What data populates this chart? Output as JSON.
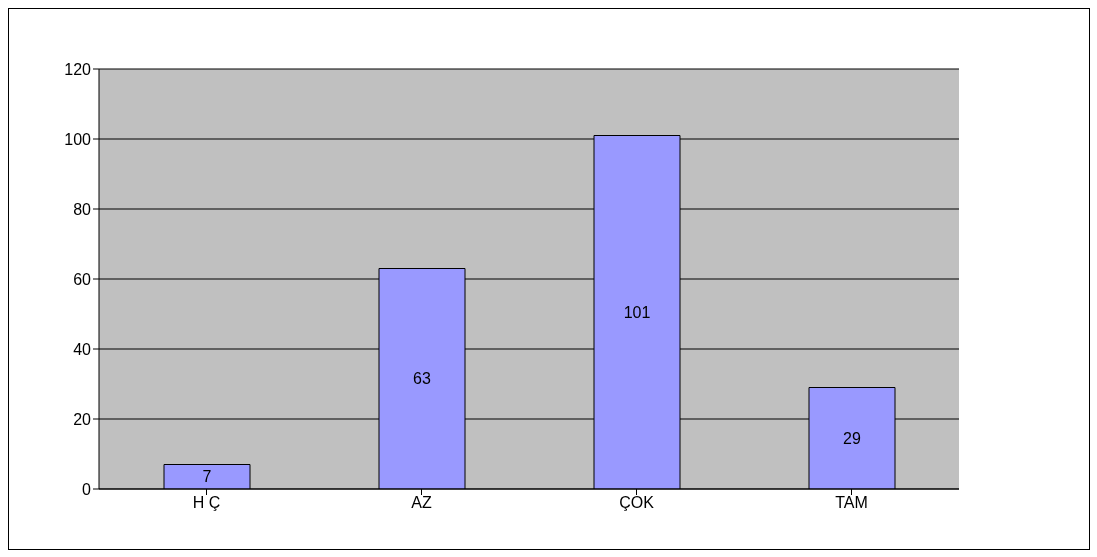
{
  "chart_data": {
    "type": "bar",
    "categories": [
      "H Ç",
      "AZ",
      "ÇOK",
      "TAM"
    ],
    "values": [
      7,
      63,
      101,
      29
    ],
    "color": "#9999ff",
    "ylim": [
      0,
      120
    ],
    "yticks": [
      0,
      20,
      40,
      60,
      80,
      100,
      120
    ],
    "grid": "y",
    "data_labels": true
  }
}
